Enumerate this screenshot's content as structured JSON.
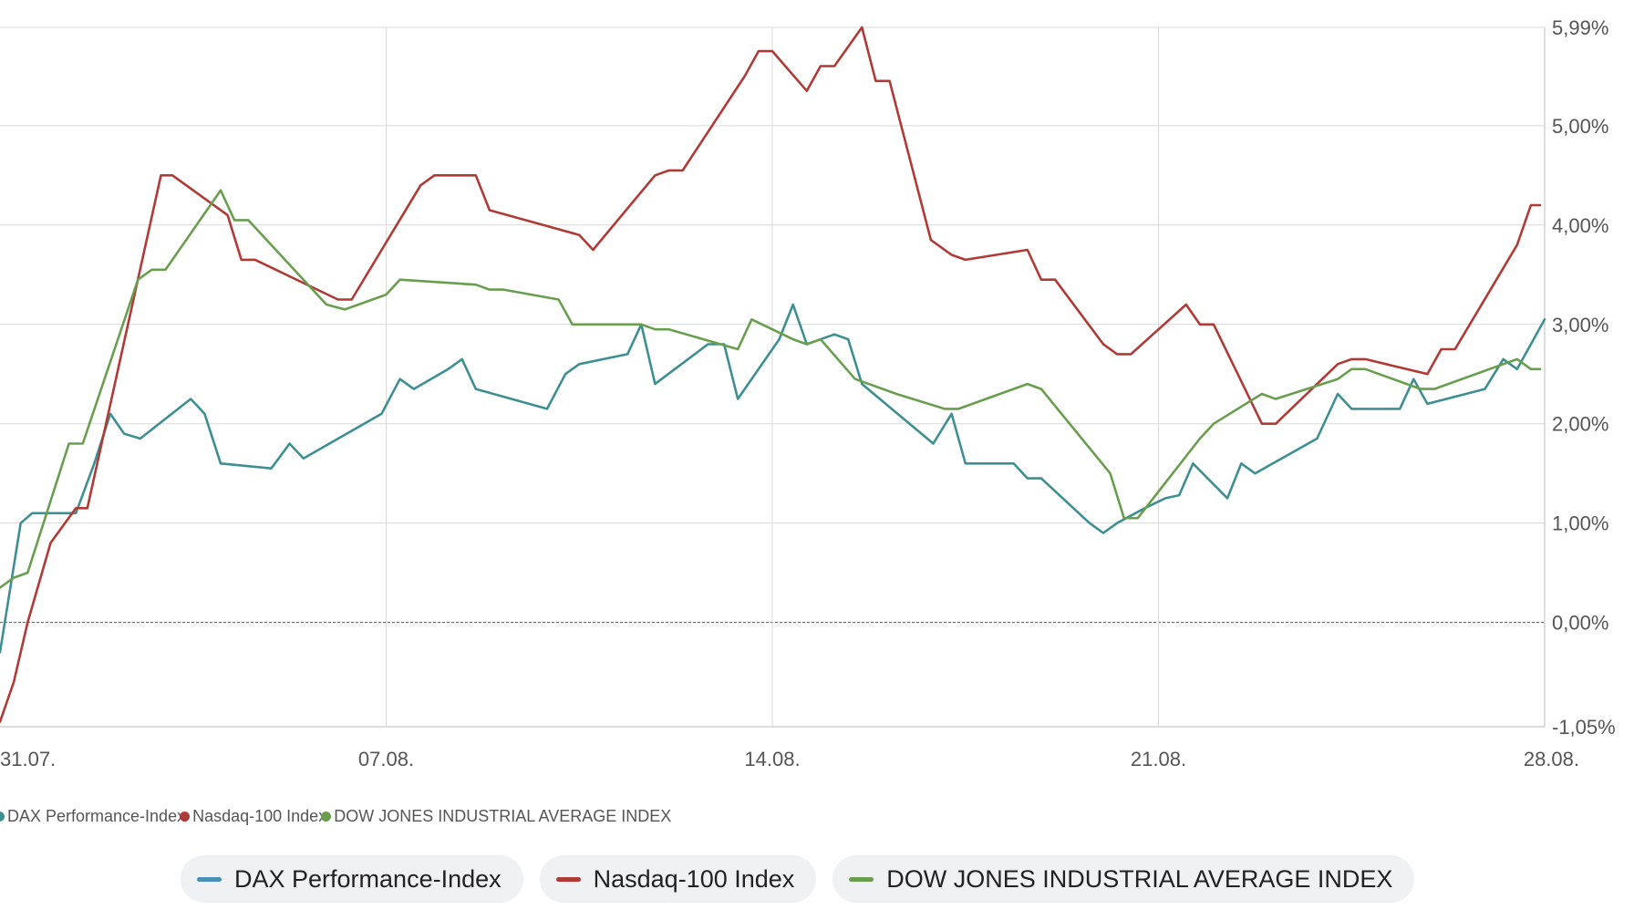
{
  "chart_data": {
    "type": "line",
    "title": "",
    "xlabel": "",
    "ylabel": "",
    "y_unit": "%",
    "ylim": [
      -1.05,
      5.99
    ],
    "yticks": [
      -1.05,
      0,
      1,
      2,
      3,
      4,
      5,
      5.99
    ],
    "ytick_labels": [
      "-1,05%",
      "0,00%",
      "1,00%",
      "2,00%",
      "3,00%",
      "4,00%",
      "5,00%",
      "5,99%"
    ],
    "xlim": [
      "2023-07-31",
      "2023-08-28"
    ],
    "xticks": [
      "2023-07-31",
      "2023-08-07",
      "2023-08-14",
      "2023-08-21",
      "2023-08-28"
    ],
    "xtick_labels": [
      "31.07.",
      "07.08.",
      "14.08.",
      "21.08.",
      "28.08."
    ],
    "zero_line": "dashed",
    "grid": true,
    "legend_position": "bottom",
    "series": [
      {
        "name": "DAX Performance-Index",
        "color": "#3d8f91",
        "points": [
          [
            "2023-07-31T00:00",
            -0.3
          ],
          [
            "2023-07-31T09:00",
            1.0
          ],
          [
            "2023-07-31T14:00",
            1.1
          ],
          [
            "2023-08-01T09:00",
            1.1
          ],
          [
            "2023-08-01T17:00",
            1.6
          ],
          [
            "2023-08-02T00:00",
            2.1
          ],
          [
            "2023-08-02T06:00",
            1.9
          ],
          [
            "2023-08-02T13:00",
            1.85
          ],
          [
            "2023-08-03T11:00",
            2.25
          ],
          [
            "2023-08-03T17:00",
            2.1
          ],
          [
            "2023-08-04T00:00",
            1.6
          ],
          [
            "2023-08-04T22:00",
            1.55
          ],
          [
            "2023-08-05T06:00",
            1.8
          ],
          [
            "2023-08-05T12:00",
            1.65
          ],
          [
            "2023-08-06T22:00",
            2.1
          ],
          [
            "2023-08-07T06:00",
            2.45
          ],
          [
            "2023-08-07T12:00",
            2.35
          ],
          [
            "2023-08-08T03:00",
            2.55
          ],
          [
            "2023-08-08T09:00",
            2.65
          ],
          [
            "2023-08-08T15:00",
            2.35
          ],
          [
            "2023-08-09T22:00",
            2.15
          ],
          [
            "2023-08-10T06:00",
            2.5
          ],
          [
            "2023-08-10T12:00",
            2.6
          ],
          [
            "2023-08-11T09:00",
            2.7
          ],
          [
            "2023-08-11T15:00",
            3.0
          ],
          [
            "2023-08-11T21:00",
            2.4
          ],
          [
            "2023-08-12T20:00",
            2.8
          ],
          [
            "2023-08-13T03:00",
            2.8
          ],
          [
            "2023-08-13T09:00",
            2.25
          ],
          [
            "2023-08-14T03:00",
            2.85
          ],
          [
            "2023-08-14T09:00",
            3.2
          ],
          [
            "2023-08-14T15:00",
            2.8
          ],
          [
            "2023-08-15T03:00",
            2.9
          ],
          [
            "2023-08-15T09:00",
            2.85
          ],
          [
            "2023-08-15T15:00",
            2.4
          ],
          [
            "2023-08-16T22:00",
            1.8
          ],
          [
            "2023-08-17T06:00",
            2.1
          ],
          [
            "2023-08-17T12:00",
            1.6
          ],
          [
            "2023-08-18T09:00",
            1.6
          ],
          [
            "2023-08-18T15:00",
            1.45
          ],
          [
            "2023-08-18T21:00",
            1.45
          ],
          [
            "2023-08-19T18:00",
            1.0
          ],
          [
            "2023-08-20T00:00",
            0.9
          ],
          [
            "2023-08-20T06:00",
            1.0
          ],
          [
            "2023-08-20T18:00",
            1.15
          ],
          [
            "2023-08-21T03:00",
            1.25
          ],
          [
            "2023-08-21T09:00",
            1.28
          ],
          [
            "2023-08-21T15:00",
            1.6
          ],
          [
            "2023-08-22T06:00",
            1.25
          ],
          [
            "2023-08-22T12:00",
            1.6
          ],
          [
            "2023-08-22T18:00",
            1.5
          ],
          [
            "2023-08-23T21:00",
            1.85
          ],
          [
            "2023-08-24T06:00",
            2.3
          ],
          [
            "2023-08-24T12:00",
            2.15
          ],
          [
            "2023-08-25T09:00",
            2.15
          ],
          [
            "2023-08-25T15:00",
            2.45
          ],
          [
            "2023-08-25T21:00",
            2.2
          ],
          [
            "2023-08-26T22:00",
            2.35
          ],
          [
            "2023-08-27T06:00",
            2.65
          ],
          [
            "2023-08-27T12:00",
            2.55
          ],
          [
            "2023-08-28T00:00",
            3.05
          ]
        ]
      },
      {
        "name": "Nasdaq-100 Index",
        "color": "#b03a36",
        "points": [
          [
            "2023-07-31T00:00",
            -1.0
          ],
          [
            "2023-07-31T06:00",
            -0.6
          ],
          [
            "2023-07-31T12:00",
            0.0
          ],
          [
            "2023-07-31T22:00",
            0.8
          ],
          [
            "2023-08-01T09:00",
            1.15
          ],
          [
            "2023-08-01T14:00",
            1.15
          ],
          [
            "2023-08-02T22:00",
            4.5
          ],
          [
            "2023-08-03T03:00",
            4.5
          ],
          [
            "2023-08-04T03:00",
            4.1
          ],
          [
            "2023-08-04T09:00",
            3.65
          ],
          [
            "2023-08-04T15:00",
            3.65
          ],
          [
            "2023-08-06T03:00",
            3.25
          ],
          [
            "2023-08-06T09:00",
            3.25
          ],
          [
            "2023-08-07T15:00",
            4.4
          ],
          [
            "2023-08-07T21:00",
            4.5
          ],
          [
            "2023-08-08T15:00",
            4.5
          ],
          [
            "2023-08-08T21:00",
            4.15
          ],
          [
            "2023-08-10T12:00",
            3.9
          ],
          [
            "2023-08-10T18:00",
            3.75
          ],
          [
            "2023-08-11T21:00",
            4.5
          ],
          [
            "2023-08-12T03:00",
            4.55
          ],
          [
            "2023-08-12T09:00",
            4.55
          ],
          [
            "2023-08-13T12:00",
            5.5
          ],
          [
            "2023-08-13T18:00",
            5.75
          ],
          [
            "2023-08-14T00:00",
            5.75
          ],
          [
            "2023-08-14T15:00",
            5.35
          ],
          [
            "2023-08-14T21:00",
            5.6
          ],
          [
            "2023-08-15T03:00",
            5.6
          ],
          [
            "2023-08-15T15:00",
            5.99
          ],
          [
            "2023-08-15T21:00",
            5.45
          ],
          [
            "2023-08-16T03:00",
            5.45
          ],
          [
            "2023-08-16T21:00",
            3.85
          ],
          [
            "2023-08-17T06:00",
            3.7
          ],
          [
            "2023-08-17T12:00",
            3.65
          ],
          [
            "2023-08-18T15:00",
            3.75
          ],
          [
            "2023-08-18T21:00",
            3.45
          ],
          [
            "2023-08-19T03:00",
            3.45
          ],
          [
            "2023-08-20T00:00",
            2.8
          ],
          [
            "2023-08-20T06:00",
            2.7
          ],
          [
            "2023-08-20T12:00",
            2.7
          ],
          [
            "2023-08-21T12:00",
            3.2
          ],
          [
            "2023-08-21T18:00",
            3.0
          ],
          [
            "2023-08-22T00:00",
            3.0
          ],
          [
            "2023-08-22T21:00",
            2.0
          ],
          [
            "2023-08-23T03:00",
            2.0
          ],
          [
            "2023-08-24T06:00",
            2.6
          ],
          [
            "2023-08-24T12:00",
            2.65
          ],
          [
            "2023-08-24T18:00",
            2.65
          ],
          [
            "2023-08-25T21:00",
            2.5
          ],
          [
            "2023-08-26T03:00",
            2.75
          ],
          [
            "2023-08-26T09:00",
            2.75
          ],
          [
            "2023-08-27T12:00",
            3.8
          ],
          [
            "2023-08-27T18:00",
            4.2
          ],
          [
            "2023-08-27T22:00",
            4.2
          ]
        ]
      },
      {
        "name": "DOW JONES INDUSTRIAL AVERAGE INDEX",
        "color": "#6a9e4f",
        "points": [
          [
            "2023-07-31T00:00",
            0.35
          ],
          [
            "2023-07-31T06:00",
            0.45
          ],
          [
            "2023-07-31T12:00",
            0.5
          ],
          [
            "2023-08-01T06:00",
            1.8
          ],
          [
            "2023-08-01T12:00",
            1.8
          ],
          [
            "2023-08-02T12:00",
            3.45
          ],
          [
            "2023-08-02T18:00",
            3.55
          ],
          [
            "2023-08-03T00:00",
            3.55
          ],
          [
            "2023-08-04T00:00",
            4.35
          ],
          [
            "2023-08-04T06:00",
            4.05
          ],
          [
            "2023-08-04T12:00",
            4.05
          ],
          [
            "2023-08-05T22:00",
            3.2
          ],
          [
            "2023-08-06T06:00",
            3.15
          ],
          [
            "2023-08-07T00:00",
            3.3
          ],
          [
            "2023-08-07T06:00",
            3.45
          ],
          [
            "2023-08-08T15:00",
            3.4
          ],
          [
            "2023-08-08T21:00",
            3.35
          ],
          [
            "2023-08-09T03:00",
            3.35
          ],
          [
            "2023-08-10T03:00",
            3.25
          ],
          [
            "2023-08-10T09:00",
            3.0
          ],
          [
            "2023-08-11T15:00",
            3.0
          ],
          [
            "2023-08-11T21:00",
            2.95
          ],
          [
            "2023-08-12T03:00",
            2.95
          ],
          [
            "2023-08-13T09:00",
            2.75
          ],
          [
            "2023-08-13T15:00",
            3.05
          ],
          [
            "2023-08-14T09:00",
            2.85
          ],
          [
            "2023-08-14T15:00",
            2.8
          ],
          [
            "2023-08-14T21:00",
            2.85
          ],
          [
            "2023-08-15T12:00",
            2.45
          ],
          [
            "2023-08-16T06:00",
            2.3
          ],
          [
            "2023-08-17T03:00",
            2.15
          ],
          [
            "2023-08-17T09:00",
            2.15
          ],
          [
            "2023-08-18T15:00",
            2.4
          ],
          [
            "2023-08-18T21:00",
            2.35
          ],
          [
            "2023-08-20T03:00",
            1.5
          ],
          [
            "2023-08-20T09:00",
            1.05
          ],
          [
            "2023-08-20T15:00",
            1.05
          ],
          [
            "2023-08-21T18:00",
            1.85
          ],
          [
            "2023-08-22T00:00",
            2.0
          ],
          [
            "2023-08-22T21:00",
            2.3
          ],
          [
            "2023-08-23T03:00",
            2.25
          ],
          [
            "2023-08-24T06:00",
            2.45
          ],
          [
            "2023-08-24T12:00",
            2.55
          ],
          [
            "2023-08-24T18:00",
            2.55
          ],
          [
            "2023-08-25T18:00",
            2.35
          ],
          [
            "2023-08-26T00:00",
            2.35
          ],
          [
            "2023-08-27T12:00",
            2.65
          ],
          [
            "2023-08-27T18:00",
            2.55
          ],
          [
            "2023-08-27T22:00",
            2.55
          ]
        ]
      }
    ]
  }
}
